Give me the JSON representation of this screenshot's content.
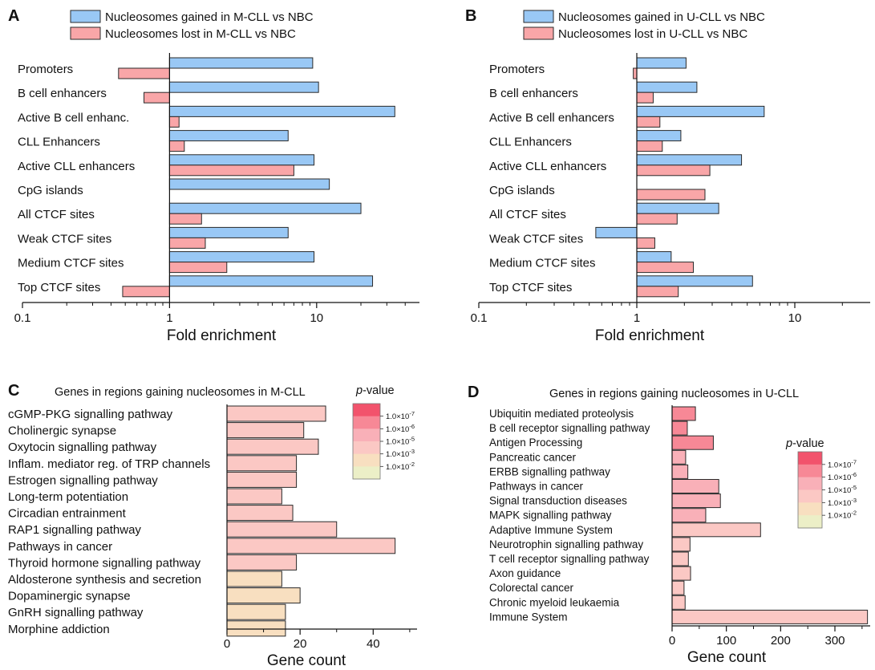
{
  "colors": {
    "gained": "#99c8f5",
    "lost": "#f9a6a8",
    "edge": "#2a2a2a",
    "pvalue_scale": [
      "#f2536c",
      "#f78896",
      "#f9b0b8",
      "#fbc8c4",
      "#f8dfc0",
      "#ecefc7"
    ]
  },
  "chart_data": [
    {
      "panel": "A",
      "type": "bar",
      "orientation": "horizontal",
      "x_scale": "log",
      "xlim": [
        0.1,
        50
      ],
      "xlabel": "Fold enrichment",
      "xticks": [
        0.1,
        1,
        10
      ],
      "xtick_labels": [
        "0.1",
        "1",
        "10"
      ],
      "legend_position": "top-center",
      "categories": [
        "Promoters",
        "B cell enhancers",
        "Active B cell enhanc.",
        "CLL Enhancers",
        "Active CLL enhancers",
        "CpG islands",
        "All CTCF sites",
        "Weak CTCF sites",
        "Medium CTCF sites",
        "Top CTCF sites"
      ],
      "series": [
        {
          "name": "Nucleosomes gained in M-CLL vs NBC",
          "values": [
            9.4,
            10.3,
            34.0,
            6.4,
            9.6,
            12.2,
            20.0,
            6.4,
            9.6,
            24.0
          ]
        },
        {
          "name": "Nucleosomes lost in M-CLL vs NBC",
          "values": [
            0.45,
            0.67,
            1.16,
            1.26,
            7.0,
            null,
            1.65,
            1.75,
            2.45,
            0.48
          ]
        }
      ]
    },
    {
      "panel": "B",
      "type": "bar",
      "orientation": "horizontal",
      "x_scale": "log",
      "xlim": [
        0.1,
        30
      ],
      "xlabel": "Fold enrichment",
      "xticks": [
        0.1,
        1,
        10
      ],
      "xtick_labels": [
        "0.1",
        "1",
        "10"
      ],
      "legend_position": "top-center",
      "categories": [
        "Promoters",
        "B cell enhancers",
        "Active B cell enhancers",
        "CLL Enhancers",
        "Active CLL enhancers",
        "CpG islands",
        "All CTCF sites",
        "Weak CTCF sites",
        "Medium CTCF sites",
        "Top CTCF sites"
      ],
      "series": [
        {
          "name": "Nucleosomes gained in U-CLL vs NBC",
          "values": [
            2.05,
            2.4,
            6.4,
            1.9,
            4.6,
            null,
            3.3,
            0.55,
            1.65,
            5.4
          ]
        },
        {
          "name": "Nucleosomes lost in U-CLL vs NBC",
          "values": [
            0.95,
            1.27,
            1.4,
            1.45,
            2.9,
            2.7,
            1.8,
            1.3,
            2.28,
            1.83
          ]
        }
      ]
    },
    {
      "panel": "C",
      "type": "bar",
      "orientation": "horizontal",
      "title": "Genes in regions gaining nucleosomes in M-CLL",
      "xlabel": "Gene count",
      "xlim": [
        0,
        52
      ],
      "xticks": [
        0,
        20,
        40
      ],
      "xtick_labels": [
        "0",
        "20",
        "40"
      ],
      "categories": [
        "cGMP-PKG signalling pathway",
        "Cholinergic synapse",
        "Oxytocin signalling pathway",
        "Inflam. mediator reg. of TRP channels",
        "Estrogen signalling pathway",
        "Long-term potentiation",
        "Circadian entrainment",
        "RAP1 signalling pathway",
        "Pathways in cancer",
        "Thyroid hormone signalling pathway",
        "Aldosterone synthesis and secretion",
        "Dopaminergic synapse",
        "GnRH signalling pathway",
        "Morphine addiction"
      ],
      "values": [
        27,
        21,
        25,
        19,
        19,
        15,
        18,
        30,
        46,
        19,
        15,
        20,
        16,
        16
      ],
      "pvalue_color_index": [
        3,
        3,
        3,
        3,
        3,
        3,
        3,
        3,
        3,
        3,
        4,
        4,
        4,
        4
      ],
      "color_scale": {
        "title_prefix": "p",
        "title_suffix": "-value",
        "labels": [
          "1.0×10",
          "1.0×10",
          "1.0×10",
          "1.0×10",
          "1.0×10"
        ],
        "exponents": [
          "-7",
          "-6",
          "-5",
          "-3",
          "-2"
        ]
      }
    },
    {
      "panel": "D",
      "type": "bar",
      "orientation": "horizontal",
      "title": "Genes in regions gaining nucleosomes in U-CLL",
      "xlabel": "Gene count",
      "xlim": [
        0,
        365
      ],
      "xticks": [
        0,
        100,
        200,
        300
      ],
      "xtick_labels": [
        "0",
        "100",
        "200",
        "300"
      ],
      "categories": [
        "Ubiquitin mediated proteolysis",
        "B cell receptor signalling pathway",
        "Antigen Processing",
        "Pancreatic cancer",
        "ERBB signalling pathway",
        "Pathways in cancer",
        "Signal transduction diseases",
        "MAPK signalling pathway",
        "Adaptive Immune System",
        "Neurotrophin signalling pathway",
        "T cell receptor signalling pathway",
        "Axon guidance",
        "Colorectal cancer",
        "Chronic myeloid leukaemia",
        "Immune System"
      ],
      "values": [
        43,
        28,
        76,
        25,
        29,
        86,
        89,
        62,
        163,
        33,
        30,
        34,
        22,
        24,
        360
      ],
      "pvalue_color_index": [
        1,
        1,
        1,
        2,
        2,
        2,
        2,
        2,
        3,
        3,
        3,
        3,
        3,
        3,
        3
      ],
      "color_scale": {
        "title_prefix": "p",
        "title_suffix": "-value",
        "labels": [
          "1.0×10",
          "1.0×10",
          "1.0×10",
          "1.0×10",
          "1.0×10"
        ],
        "exponents": [
          "-7",
          "-6",
          "-5",
          "-3",
          "-2"
        ]
      }
    }
  ]
}
